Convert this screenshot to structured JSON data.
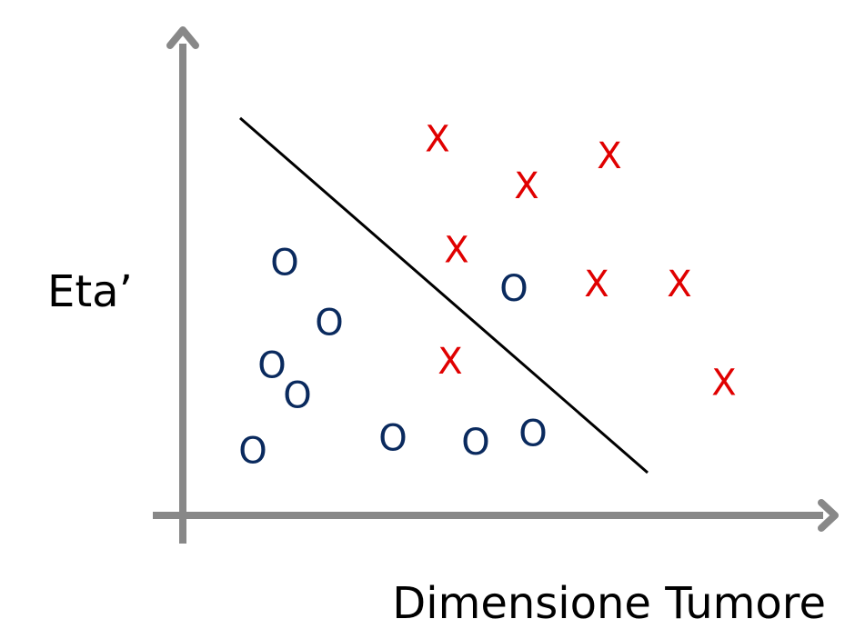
{
  "chart_data": {
    "type": "scatter",
    "title": "",
    "xlabel": "Dimensione Tumore",
    "ylabel": "Eta’",
    "xlim": [
      0,
      100
    ],
    "ylim": [
      0,
      100
    ],
    "grid": false,
    "legend": "none",
    "series": [
      {
        "marker": "X",
        "color": "#e00000",
        "points": [
          {
            "x": 40,
            "y": 88
          },
          {
            "x": 54,
            "y": 77
          },
          {
            "x": 67,
            "y": 84
          },
          {
            "x": 43,
            "y": 62
          },
          {
            "x": 65,
            "y": 54
          },
          {
            "x": 78,
            "y": 54
          },
          {
            "x": 42,
            "y": 36
          },
          {
            "x": 85,
            "y": 31
          }
        ]
      },
      {
        "marker": "O",
        "color": "#0a2a5e",
        "points": [
          {
            "x": 16,
            "y": 59
          },
          {
            "x": 23,
            "y": 45
          },
          {
            "x": 14,
            "y": 35
          },
          {
            "x": 18,
            "y": 28
          },
          {
            "x": 11,
            "y": 15
          },
          {
            "x": 33,
            "y": 18
          },
          {
            "x": 46,
            "y": 17
          },
          {
            "x": 52,
            "y": 53
          },
          {
            "x": 55,
            "y": 19
          }
        ]
      }
    ],
    "decision_boundary": {
      "from": {
        "x": 9,
        "y": 93
      },
      "to": {
        "x": 73,
        "y": 10
      },
      "color": "#000000"
    },
    "axis_color": "#888888"
  }
}
